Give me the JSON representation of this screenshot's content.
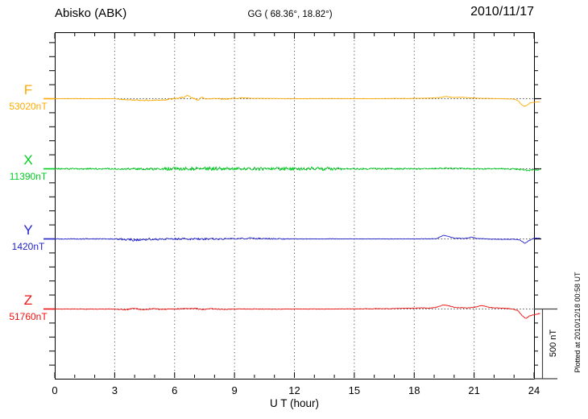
{
  "header": {
    "station": "Abisko (ABK)",
    "coords": "GG ( 68.36°,  18.82°)",
    "date": "2010/11/17"
  },
  "axis": {
    "xlabel": "U T (hour)",
    "x_ticks": [
      "0",
      "3",
      "6",
      "9",
      "12",
      "15",
      "18",
      "21",
      "24"
    ],
    "x_range": [
      0,
      24
    ],
    "minor_tick_every_hours": 1,
    "major_tick_every_hours": 3,
    "y_division_nT": 100
  },
  "scale_bar": {
    "label": "500 nT",
    "span_nT": 500
  },
  "footnote": {
    "text": "Plotted at 2010/12/18 00:58 UT"
  },
  "chart_data": {
    "type": "line",
    "title": "Abisko (ABK) magnetogram, 2010/11/17",
    "xlabel": "U T (hour)",
    "x_range": [
      0,
      24
    ],
    "grid": "vertical dotted lines every 3 hours; dotted horizontal baseline per component",
    "y_scale": "100 nT per axis tick; 500 nT scale bar at right",
    "units": "control_points are [hour, deviation from baseline in nT]; noise_envelope is [hour, random jitter amplitude in nT]",
    "series": [
      {
        "name": "F",
        "baseline_label": "53020nT",
        "baseline_nT": 53020,
        "color": "#FFAA00",
        "control_points": [
          [
            0,
            0
          ],
          [
            1,
            1
          ],
          [
            2,
            0
          ],
          [
            3,
            0
          ],
          [
            3.4,
            -6
          ],
          [
            4,
            -10
          ],
          [
            4.8,
            -12
          ],
          [
            5.4,
            -8
          ],
          [
            5.9,
            -2
          ],
          [
            6.3,
            5
          ],
          [
            6.65,
            20
          ],
          [
            6.9,
            3
          ],
          [
            7.15,
            -8
          ],
          [
            7.4,
            9
          ],
          [
            7.7,
            -4
          ],
          [
            8,
            4
          ],
          [
            8.5,
            -2
          ],
          [
            9,
            2
          ],
          [
            9.4,
            7
          ],
          [
            9.8,
            2
          ],
          [
            11,
            1
          ],
          [
            12,
            0
          ],
          [
            14,
            1
          ],
          [
            16,
            0
          ],
          [
            18,
            2
          ],
          [
            18.8,
            4
          ],
          [
            19.3,
            9
          ],
          [
            19.6,
            16
          ],
          [
            19.9,
            9
          ],
          [
            20.4,
            10
          ],
          [
            20.9,
            5
          ],
          [
            21.5,
            2
          ],
          [
            22.2,
            1
          ],
          [
            23,
            -3
          ],
          [
            23.2,
            -14
          ],
          [
            23.35,
            -38
          ],
          [
            23.5,
            -55
          ],
          [
            23.65,
            -48
          ],
          [
            23.8,
            -30
          ],
          [
            23.95,
            -26
          ],
          [
            24.3,
            -22
          ]
        ],
        "noise_envelope": [
          [
            0,
            1.2
          ],
          [
            3,
            1.5
          ],
          [
            4,
            4
          ],
          [
            5,
            5
          ],
          [
            6,
            6
          ],
          [
            7,
            6
          ],
          [
            8,
            5
          ],
          [
            9,
            4
          ],
          [
            9.8,
            2
          ],
          [
            10.5,
            1.5
          ],
          [
            12,
            2
          ],
          [
            14,
            1.5
          ],
          [
            18,
            1.5
          ],
          [
            21,
            1.2
          ],
          [
            23,
            1.5
          ],
          [
            24.3,
            2
          ]
        ]
      },
      {
        "name": "X",
        "baseline_label": "11390nT",
        "baseline_nT": 11390,
        "color": "#00CC22",
        "control_points": [
          [
            0,
            0
          ],
          [
            2,
            0
          ],
          [
            4,
            -1
          ],
          [
            6,
            0
          ],
          [
            8,
            1
          ],
          [
            10,
            0
          ],
          [
            12,
            0
          ],
          [
            14,
            0
          ],
          [
            16,
            0
          ],
          [
            18,
            0
          ],
          [
            19,
            1
          ],
          [
            19.6,
            5
          ],
          [
            20,
            2
          ],
          [
            21,
            0
          ],
          [
            22,
            0
          ],
          [
            23,
            -1
          ],
          [
            23.4,
            -6
          ],
          [
            23.7,
            -12
          ],
          [
            24,
            -7
          ],
          [
            24.3,
            -6
          ]
        ],
        "noise_envelope": [
          [
            0,
            5
          ],
          [
            1,
            5
          ],
          [
            2,
            5
          ],
          [
            3,
            6
          ],
          [
            4,
            7
          ],
          [
            4.8,
            9
          ],
          [
            5.5,
            12
          ],
          [
            6.5,
            13
          ],
          [
            7.5,
            15
          ],
          [
            8.5,
            12
          ],
          [
            9.5,
            9
          ],
          [
            10.3,
            13
          ],
          [
            11,
            14
          ],
          [
            11.8,
            12
          ],
          [
            12.5,
            13
          ],
          [
            13.2,
            15
          ],
          [
            14,
            11
          ],
          [
            15,
            7
          ],
          [
            16,
            6
          ],
          [
            17,
            6
          ],
          [
            18,
            5
          ],
          [
            19,
            5
          ],
          [
            20,
            5
          ],
          [
            21,
            4.5
          ],
          [
            22,
            4.5
          ],
          [
            23,
            5
          ],
          [
            24.3,
            6
          ]
        ]
      },
      {
        "name": "Y",
        "baseline_label": "1420nT",
        "baseline_nT": 1420,
        "color": "#2222CC",
        "control_points": [
          [
            0,
            0
          ],
          [
            1,
            0
          ],
          [
            2,
            0
          ],
          [
            3,
            0
          ],
          [
            3.6,
            -5
          ],
          [
            4,
            -7
          ],
          [
            4.5,
            -2
          ],
          [
            5,
            -3
          ],
          [
            6,
            0
          ],
          [
            7,
            -1
          ],
          [
            8,
            0
          ],
          [
            9,
            1
          ],
          [
            9.8,
            4
          ],
          [
            10.5,
            2
          ],
          [
            11,
            0
          ],
          [
            12,
            0
          ],
          [
            14,
            0
          ],
          [
            16,
            0
          ],
          [
            18,
            0
          ],
          [
            19.1,
            1
          ],
          [
            19.45,
            25
          ],
          [
            19.7,
            18
          ],
          [
            20,
            5
          ],
          [
            20.5,
            3
          ],
          [
            20.85,
            12
          ],
          [
            21.15,
            3
          ],
          [
            22,
            -2
          ],
          [
            23,
            -3
          ],
          [
            23.3,
            -8
          ],
          [
            23.55,
            -32
          ],
          [
            23.75,
            -12
          ],
          [
            24,
            4
          ],
          [
            24.3,
            6
          ]
        ],
        "noise_envelope": [
          [
            0,
            2.5
          ],
          [
            3,
            3
          ],
          [
            3.5,
            9
          ],
          [
            4.5,
            10
          ],
          [
            5,
            7
          ],
          [
            6,
            6
          ],
          [
            7,
            8
          ],
          [
            8,
            6
          ],
          [
            9,
            5
          ],
          [
            10,
            5
          ],
          [
            11,
            4
          ],
          [
            12,
            2.5
          ],
          [
            13,
            2
          ],
          [
            15,
            1.5
          ],
          [
            17,
            1.5
          ],
          [
            18,
            1.5
          ],
          [
            19,
            2
          ],
          [
            20,
            2
          ],
          [
            21,
            2.5
          ],
          [
            22,
            2
          ],
          [
            23,
            2
          ],
          [
            24.3,
            2
          ]
        ]
      },
      {
        "name": "Z",
        "baseline_label": "51760nT",
        "baseline_nT": 51760,
        "color": "#EE1111",
        "control_points": [
          [
            0,
            0
          ],
          [
            1,
            0
          ],
          [
            2,
            -1
          ],
          [
            3,
            0
          ],
          [
            3.6,
            -5
          ],
          [
            4,
            5
          ],
          [
            4.4,
            -4
          ],
          [
            4.9,
            2
          ],
          [
            5.4,
            -2
          ],
          [
            6,
            0
          ],
          [
            6.6,
            3
          ],
          [
            7,
            5
          ],
          [
            7.4,
            -5
          ],
          [
            7.8,
            3
          ],
          [
            8.3,
            -2
          ],
          [
            9,
            0
          ],
          [
            10,
            0
          ],
          [
            11,
            -1
          ],
          [
            12,
            0
          ],
          [
            14,
            0
          ],
          [
            15,
            1
          ],
          [
            16,
            2
          ],
          [
            17,
            3
          ],
          [
            17.6,
            5
          ],
          [
            18.2,
            7
          ],
          [
            19,
            8
          ],
          [
            19.5,
            30
          ],
          [
            19.75,
            22
          ],
          [
            20.1,
            10
          ],
          [
            20.6,
            8
          ],
          [
            21,
            12
          ],
          [
            21.4,
            25
          ],
          [
            21.8,
            10
          ],
          [
            22.3,
            7
          ],
          [
            22.7,
            3
          ],
          [
            23,
            -2
          ],
          [
            23.2,
            -12
          ],
          [
            23.4,
            -48
          ],
          [
            23.6,
            -68
          ],
          [
            23.75,
            -50
          ],
          [
            23.9,
            -44
          ],
          [
            24.1,
            -38
          ],
          [
            24.3,
            -32
          ]
        ],
        "noise_envelope": [
          [
            0,
            1.5
          ],
          [
            3,
            2
          ],
          [
            3.5,
            4
          ],
          [
            4.5,
            4
          ],
          [
            5.5,
            3
          ],
          [
            6.5,
            4
          ],
          [
            7.5,
            4
          ],
          [
            8.5,
            3
          ],
          [
            9.5,
            2
          ],
          [
            10.5,
            1.5
          ],
          [
            12,
            1.5
          ],
          [
            15,
            1.5
          ],
          [
            17,
            2
          ],
          [
            19,
            2.5
          ],
          [
            21,
            2.5
          ],
          [
            22.5,
            2
          ],
          [
            23.5,
            2.5
          ],
          [
            24.3,
            3
          ]
        ]
      }
    ]
  }
}
